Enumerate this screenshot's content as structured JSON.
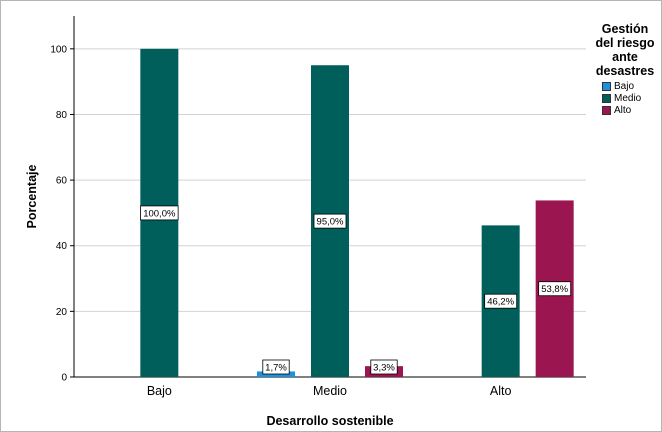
{
  "chart_data": {
    "type": "bar",
    "categories": [
      "Bajo",
      "Medio",
      "Alto"
    ],
    "xlabel": "Desarrollo sostenible",
    "ylabel": "Porcentaje",
    "ylim": [
      0,
      110
    ],
    "yticks": [
      0,
      20,
      40,
      60,
      80,
      100
    ],
    "grid": true,
    "legend_position": "right",
    "legend": {
      "title": "Gestión\ndel riesgo\nante\ndesastres",
      "entries": [
        "Bajo",
        "Medio",
        "Alto"
      ]
    },
    "series": [
      {
        "name": "Bajo",
        "color": "#1e90dd",
        "values": [
          null,
          1.7,
          null
        ],
        "labels": [
          "",
          "1,7%",
          ""
        ]
      },
      {
        "name": "Medio",
        "color": "#005f5b",
        "values": [
          100.0,
          95.0,
          46.2
        ],
        "labels": [
          "100,0%",
          "95,0%",
          "46,2%"
        ]
      },
      {
        "name": "Alto",
        "color": "#9b1650",
        "values": [
          null,
          3.3,
          53.8
        ],
        "labels": [
          "",
          "3,3%",
          "53,8%"
        ]
      }
    ]
  }
}
